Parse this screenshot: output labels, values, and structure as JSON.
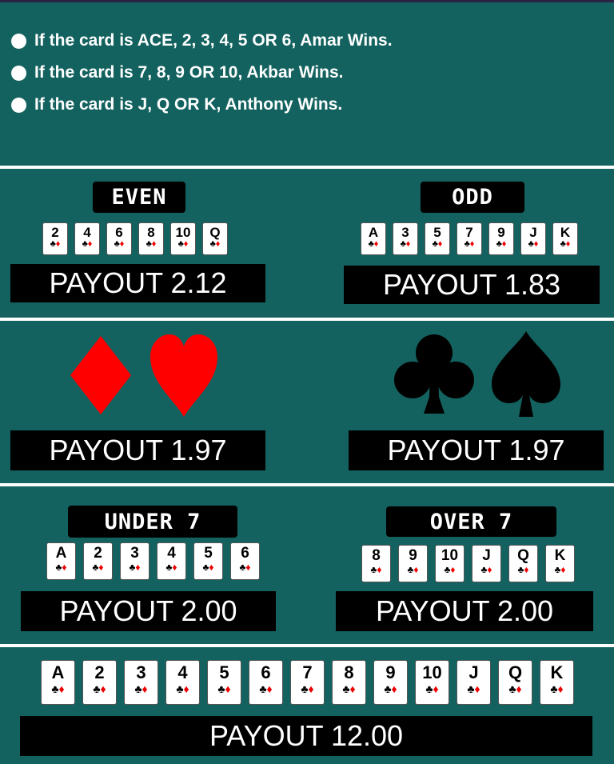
{
  "rules": [
    "If the card is ACE, 2, 3, 4, 5 OR 6, Amar Wins.",
    "If the card is 7, 8, 9 OR 10, Akbar Wins.",
    "If the card is J, Q OR K, Anthony Wins."
  ],
  "even_odd": {
    "even": {
      "label": "EVEN",
      "cards": [
        "2",
        "4",
        "6",
        "8",
        "10",
        "Q"
      ],
      "payout": "PAYOUT 2.12"
    },
    "odd": {
      "label": "ODD",
      "cards": [
        "A",
        "3",
        "5",
        "7",
        "9",
        "J",
        "K"
      ],
      "payout": "PAYOUT 1.83"
    }
  },
  "colors_bet": {
    "red": {
      "suits": [
        "diamond-icon",
        "heart-icon"
      ],
      "color": "#ff0000",
      "payout": "PAYOUT 1.97"
    },
    "black": {
      "suits": [
        "club-icon",
        "spade-icon"
      ],
      "color": "#000000",
      "payout": "PAYOUT 1.97"
    }
  },
  "under_over": {
    "under": {
      "label": "UNDER 7",
      "cards": [
        "A",
        "2",
        "3",
        "4",
        "5",
        "6"
      ],
      "payout": "PAYOUT 2.00"
    },
    "over": {
      "label": "OVER 7",
      "cards": [
        "8",
        "9",
        "10",
        "J",
        "Q",
        "K"
      ],
      "payout": "PAYOUT 2.00"
    }
  },
  "exact": {
    "cards": [
      "A",
      "2",
      "3",
      "4",
      "5",
      "6",
      "7",
      "8",
      "9",
      "10",
      "J",
      "Q",
      "K"
    ],
    "payout": "PAYOUT 12.00"
  },
  "theme": {
    "felt": "#13625f",
    "red": "#ff0000",
    "black": "#000000"
  }
}
